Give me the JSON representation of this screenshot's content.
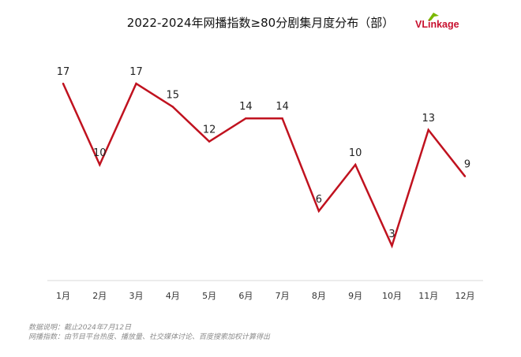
{
  "chart_data": {
    "type": "line",
    "title": "2022-2024年网播指数≥80分剧集月度分布（部）",
    "categories": [
      "1月",
      "2月",
      "3月",
      "4月",
      "5月",
      "6月",
      "7月",
      "8月",
      "9月",
      "10月",
      "11月",
      "12月"
    ],
    "series": [
      {
        "values": [
          17,
          10,
          17,
          15,
          12,
          14,
          14,
          6,
          10,
          3,
          13,
          9
        ]
      }
    ],
    "data_labels": [
      "17",
      "10",
      "17",
      "15",
      "12",
      "14",
      "14",
      "6",
      "10",
      "3",
      "13",
      "9"
    ],
    "ylim": [
      0,
      20
    ],
    "line_color": "#c0121f",
    "grid": false,
    "legend": "none"
  },
  "logo": {
    "text_v": "VL",
    "text_rest": "inkage",
    "color": "#c8102e",
    "leaf_color": "#7ab800"
  },
  "footer": {
    "line1": "数据说明：截止2024年7月12日",
    "line2": "网播指数：由节目平台热度、播放量、社交媒体讨论、百度搜索加权计算得出"
  }
}
